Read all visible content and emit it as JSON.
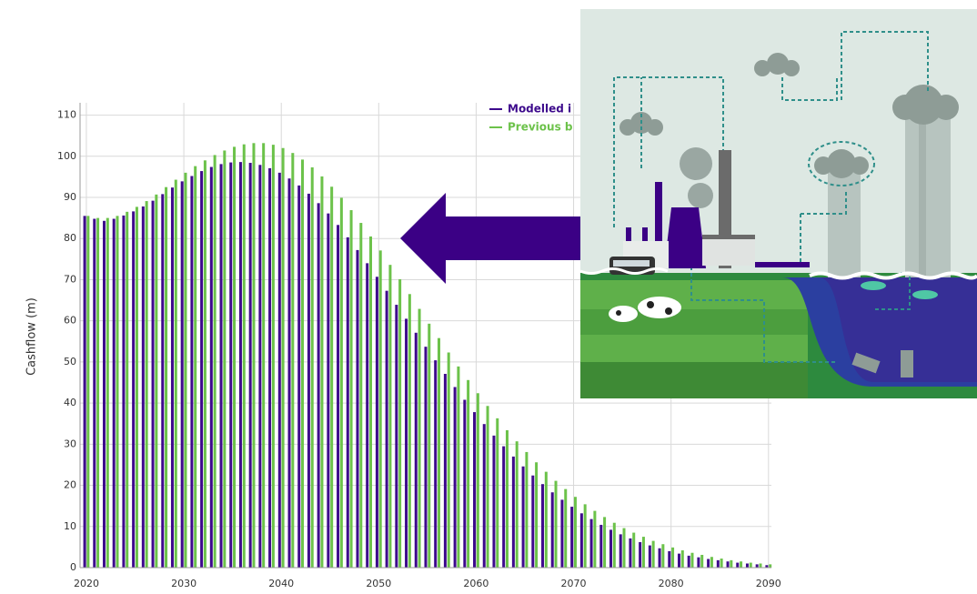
{
  "chart_data": {
    "type": "bar",
    "y_label": "Cashflow (m)",
    "x": [
      2020,
      2021,
      2022,
      2023,
      2024,
      2025,
      2026,
      2027,
      2028,
      2029,
      2030,
      2031,
      2032,
      2033,
      2034,
      2035,
      2036,
      2037,
      2038,
      2039,
      2040,
      2041,
      2042,
      2043,
      2044,
      2045,
      2046,
      2047,
      2048,
      2049,
      2050,
      2051,
      2052,
      2053,
      2054,
      2055,
      2056,
      2057,
      2058,
      2059,
      2060,
      2061,
      2062,
      2063,
      2064,
      2065,
      2066,
      2067,
      2068,
      2069,
      2070,
      2071,
      2072,
      2073,
      2074,
      2075,
      2076,
      2077,
      2078,
      2079,
      2080,
      2081,
      2082,
      2083,
      2084,
      2085,
      2086,
      2087,
      2088,
      2089,
      2090
    ],
    "series": [
      {
        "name": "Modelled i",
        "color": "#3d0a8c",
        "values": [
          85.5,
          84.8,
          84.3,
          84.8,
          85.6,
          86.6,
          87.8,
          89.2,
          90.8,
          92.4,
          93.9,
          95.2,
          96.4,
          97.4,
          98.1,
          98.5,
          98.6,
          98.4,
          97.9,
          97.1,
          96.0,
          94.6,
          92.9,
          90.9,
          88.6,
          86.1,
          83.3,
          80.3,
          77.2,
          74.0,
          70.7,
          67.3,
          63.9,
          60.5,
          57.1,
          53.7,
          50.4,
          47.1,
          43.9,
          40.8,
          37.8,
          34.9,
          32.1,
          29.5,
          27.0,
          24.6,
          22.4,
          20.3,
          18.3,
          16.5,
          14.8,
          13.2,
          11.8,
          10.4,
          9.2,
          8.1,
          7.1,
          6.2,
          5.4,
          4.7,
          4.0,
          3.4,
          2.9,
          2.5,
          2.1,
          1.8,
          1.5,
          1.2,
          1.0,
          0.8,
          0.6
        ]
      },
      {
        "name": "Previous b",
        "color": "#6cc24a",
        "values": [
          85.5,
          85.0,
          85.0,
          85.5,
          86.5,
          87.7,
          89.1,
          90.7,
          92.5,
          94.3,
          96.0,
          97.6,
          99.0,
          100.3,
          101.4,
          102.3,
          102.9,
          103.2,
          103.2,
          102.8,
          102.0,
          100.8,
          99.2,
          97.3,
          95.1,
          92.6,
          89.9,
          86.9,
          83.8,
          80.5,
          77.1,
          73.6,
          70.1,
          66.5,
          62.9,
          59.3,
          55.8,
          52.3,
          48.9,
          45.6,
          42.4,
          39.3,
          36.3,
          33.4,
          30.7,
          28.1,
          25.6,
          23.3,
          21.1,
          19.1,
          17.2,
          15.4,
          13.8,
          12.3,
          10.9,
          9.6,
          8.5,
          7.5,
          6.5,
          5.7,
          4.9,
          4.2,
          3.6,
          3.1,
          2.6,
          2.2,
          1.8,
          1.5,
          1.2,
          1.0,
          0.8
        ]
      }
    ],
    "xlim": [
      2019.35,
      2090.3
    ],
    "xticks": [
      2020,
      2030,
      2040,
      2050,
      2060,
      2070,
      2080,
      2090
    ],
    "ylim": [
      0,
      113
    ],
    "yticks": [
      0,
      10,
      20,
      30,
      40,
      50,
      60,
      70,
      80,
      90,
      100,
      110
    ],
    "grid": true
  }
}
